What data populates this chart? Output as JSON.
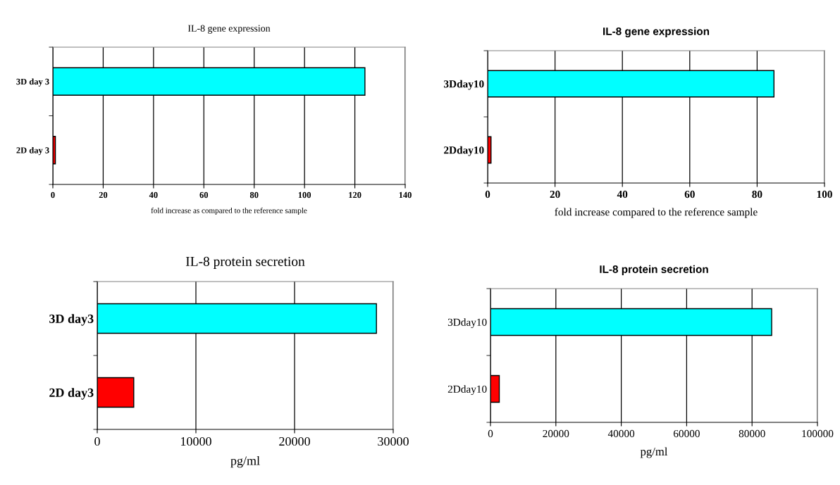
{
  "chart_data": [
    {
      "type": "bar",
      "orientation": "horizontal",
      "title": "IL-8 gene expression",
      "xlabel": "fold increase as compared to the reference sample",
      "categories": [
        "3D day 3",
        "2D day 3"
      ],
      "values": [
        124,
        1
      ],
      "colors": [
        "#00ffff",
        "#ff0000"
      ],
      "xlim": [
        0,
        140
      ],
      "xticks": [
        0,
        20,
        40,
        60,
        80,
        100,
        120,
        140
      ],
      "grid": "x"
    },
    {
      "type": "bar",
      "orientation": "horizontal",
      "title": "IL-8 gene expression",
      "xlabel": "fold increase compared to the reference sample",
      "categories": [
        "3Dday10",
        "2Dday10"
      ],
      "values": [
        85,
        1
      ],
      "colors": [
        "#00ffff",
        "#ff0000"
      ],
      "xlim": [
        0,
        100
      ],
      "xticks": [
        0,
        20,
        40,
        60,
        80,
        100
      ],
      "grid": "x"
    },
    {
      "type": "bar",
      "orientation": "horizontal",
      "title": "IL-8 protein secretion",
      "xlabel": "pg/ml",
      "categories": [
        "3D day3",
        "2D day3"
      ],
      "values": [
        28300,
        3700
      ],
      "colors": [
        "#00ffff",
        "#ff0000"
      ],
      "xlim": [
        0,
        30000
      ],
      "xticks": [
        0,
        10000,
        20000,
        30000
      ],
      "grid": "x"
    },
    {
      "type": "bar",
      "orientation": "horizontal",
      "title": "IL-8 protein secretion",
      "xlabel": "pg/ml",
      "categories": [
        "3Dday10",
        "2Dday10"
      ],
      "values": [
        86000,
        2700
      ],
      "colors": [
        "#00ffff",
        "#ff0000"
      ],
      "xlim": [
        0,
        100000
      ],
      "xticks": [
        0,
        20000,
        40000,
        60000,
        80000,
        100000
      ],
      "grid": "x"
    }
  ]
}
